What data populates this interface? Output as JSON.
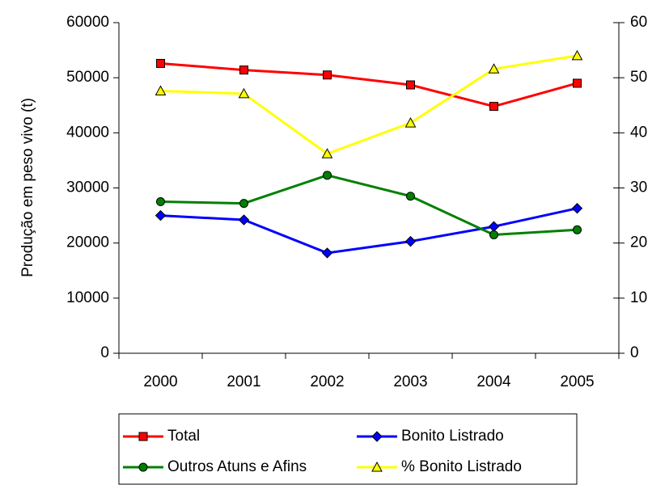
{
  "chart_data": {
    "type": "line",
    "y_label": "Produção em peso vivo (t)",
    "categories": [
      "2000",
      "2001",
      "2002",
      "2003",
      "2004",
      "2005"
    ],
    "series": [
      {
        "name": "Total",
        "color": "#ff0000",
        "marker": "square",
        "values": [
          52600,
          51400,
          50500,
          48700,
          44800,
          49000
        ]
      },
      {
        "name": "Bonito Listrado",
        "color": "#0000ff",
        "marker": "diamond",
        "values": [
          25000,
          24200,
          18200,
          20300,
          23000,
          26300
        ]
      },
      {
        "name": "Outros Atuns e Afins",
        "color": "#008000",
        "marker": "circle",
        "values": [
          27500,
          27200,
          32300,
          28500,
          21500,
          22400
        ]
      },
      {
        "name": "% Bonito Listrado",
        "color": "#ffff00",
        "marker": "triangle",
        "axis": "y2",
        "values": [
          47.6,
          47.1,
          36.2,
          41.8,
          51.6,
          54.0
        ]
      }
    ],
    "ylim": [
      0,
      60000
    ],
    "yticks": [
      0,
      10000,
      20000,
      30000,
      40000,
      50000,
      60000
    ],
    "y2lim": [
      0,
      60
    ],
    "y2ticks": [
      0,
      10,
      20,
      30,
      40,
      50,
      60
    ],
    "grid": false,
    "legend": "bottom"
  }
}
